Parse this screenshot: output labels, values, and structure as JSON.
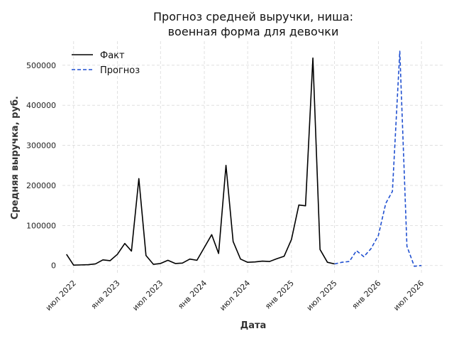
{
  "chart_data": {
    "type": "line",
    "title_lines": [
      "Прогноз средней выручки, ниша:",
      "военная форма для девочки"
    ],
    "xlabel": "Дата",
    "ylabel": "Средняя выручка, руб.",
    "x_ticks": [
      {
        "date": "2022-07-01",
        "label": "июл 2022"
      },
      {
        "date": "2023-01-01",
        "label": "янв 2023"
      },
      {
        "date": "2023-07-01",
        "label": "июл 2023"
      },
      {
        "date": "2024-01-01",
        "label": "янв 2024"
      },
      {
        "date": "2024-07-01",
        "label": "июл 2024"
      },
      {
        "date": "2025-01-01",
        "label": "янв 2025"
      },
      {
        "date": "2025-07-01",
        "label": "июл 2025"
      },
      {
        "date": "2026-01-01",
        "label": "янв 2026"
      },
      {
        "date": "2026-07-01",
        "label": "июл 2026"
      }
    ],
    "y_ticks": [
      0,
      100000,
      200000,
      300000,
      400000,
      500000
    ],
    "ylim": [
      -20000,
      560000
    ],
    "xlim": [
      "2022-05-15",
      "2026-10-01"
    ],
    "grid": true,
    "legend_position": "top-left",
    "series": [
      {
        "name": "Факт",
        "color": "#000000",
        "style": "solid",
        "points": [
          [
            "2022-06-01",
            28000
          ],
          [
            "2022-07-01",
            1000
          ],
          [
            "2022-08-01",
            1500
          ],
          [
            "2022-09-01",
            2000
          ],
          [
            "2022-10-01",
            4000
          ],
          [
            "2022-11-01",
            14000
          ],
          [
            "2022-12-01",
            12000
          ],
          [
            "2023-01-01",
            28000
          ],
          [
            "2023-02-01",
            55000
          ],
          [
            "2023-03-01",
            36000
          ],
          [
            "2023-04-01",
            217000
          ],
          [
            "2023-05-01",
            25000
          ],
          [
            "2023-06-01",
            3000
          ],
          [
            "2023-07-01",
            5000
          ],
          [
            "2023-08-01",
            13000
          ],
          [
            "2023-09-01",
            5000
          ],
          [
            "2023-10-01",
            6000
          ],
          [
            "2023-11-01",
            16000
          ],
          [
            "2023-12-01",
            13000
          ],
          [
            "2024-01-01",
            45000
          ],
          [
            "2024-02-01",
            77000
          ],
          [
            "2024-03-01",
            30000
          ],
          [
            "2024-04-01",
            250000
          ],
          [
            "2024-05-01",
            60000
          ],
          [
            "2024-06-01",
            16000
          ],
          [
            "2024-07-01",
            8000
          ],
          [
            "2024-08-01",
            9000
          ],
          [
            "2024-09-01",
            11000
          ],
          [
            "2024-10-01",
            10000
          ],
          [
            "2024-11-01",
            17000
          ],
          [
            "2024-12-01",
            23000
          ],
          [
            "2025-01-01",
            65000
          ],
          [
            "2025-02-01",
            151000
          ],
          [
            "2025-03-01",
            149000
          ],
          [
            "2025-04-01",
            518000
          ],
          [
            "2025-05-01",
            40000
          ],
          [
            "2025-06-01",
            8000
          ],
          [
            "2025-07-01",
            4000
          ]
        ]
      },
      {
        "name": "Прогноз",
        "color": "#1f4fd0",
        "style": "dashed",
        "points": [
          [
            "2025-07-01",
            4000
          ],
          [
            "2025-08-01",
            8000
          ],
          [
            "2025-09-01",
            10000
          ],
          [
            "2025-10-01",
            37000
          ],
          [
            "2025-11-01",
            22000
          ],
          [
            "2025-12-01",
            42000
          ],
          [
            "2026-01-01",
            75000
          ],
          [
            "2026-02-01",
            155000
          ],
          [
            "2026-03-01",
            185000
          ],
          [
            "2026-04-01",
            535000
          ],
          [
            "2026-05-01",
            48000
          ],
          [
            "2026-06-01",
            -2000
          ],
          [
            "2026-07-01",
            0
          ]
        ]
      }
    ]
  }
}
